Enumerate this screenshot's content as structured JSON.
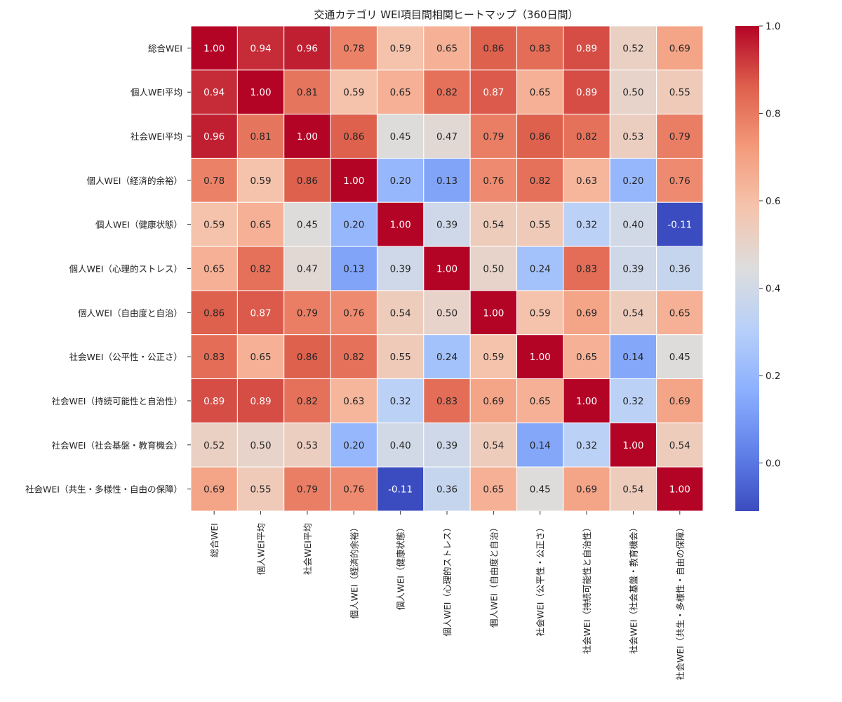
{
  "chart_data": {
    "type": "heatmap",
    "title": "交通カテゴリ WEI項目間相関ヒートマップ（360日間）",
    "categories": [
      "総合WEI",
      "個人WEI平均",
      "社会WEI平均",
      "個人WEI（経済的余裕）",
      "個人WEI（健康状態）",
      "個人WEI（心理的ストレス）",
      "個人WEI（自由度と自治）",
      "社会WEI（公平性・公正さ）",
      "社会WEI（持続可能性と自治性）",
      "社会WEI（社会基盤・教育機会）",
      "社会WEI（共生・多様性・自由の保障）"
    ],
    "values": [
      [
        1.0,
        0.94,
        0.96,
        0.78,
        0.59,
        0.65,
        0.86,
        0.83,
        0.89,
        0.52,
        0.69
      ],
      [
        0.94,
        1.0,
        0.81,
        0.59,
        0.65,
        0.82,
        0.87,
        0.65,
        0.89,
        0.5,
        0.55
      ],
      [
        0.96,
        0.81,
        1.0,
        0.86,
        0.45,
        0.47,
        0.79,
        0.86,
        0.82,
        0.53,
        0.79
      ],
      [
        0.78,
        0.59,
        0.86,
        1.0,
        0.2,
        0.13,
        0.76,
        0.82,
        0.63,
        0.2,
        0.76
      ],
      [
        0.59,
        0.65,
        0.45,
        0.2,
        1.0,
        0.39,
        0.54,
        0.55,
        0.32,
        0.4,
        -0.11
      ],
      [
        0.65,
        0.82,
        0.47,
        0.13,
        0.39,
        1.0,
        0.5,
        0.24,
        0.83,
        0.39,
        0.36
      ],
      [
        0.86,
        0.87,
        0.79,
        0.76,
        0.54,
        0.5,
        1.0,
        0.59,
        0.69,
        0.54,
        0.65
      ],
      [
        0.83,
        0.65,
        0.86,
        0.82,
        0.55,
        0.24,
        0.59,
        1.0,
        0.65,
        0.14,
        0.45
      ],
      [
        0.89,
        0.89,
        0.82,
        0.63,
        0.32,
        0.83,
        0.69,
        0.65,
        1.0,
        0.32,
        0.69
      ],
      [
        0.52,
        0.5,
        0.53,
        0.2,
        0.4,
        0.39,
        0.54,
        0.14,
        0.32,
        1.0,
        0.54
      ],
      [
        0.69,
        0.55,
        0.79,
        0.76,
        -0.11,
        0.36,
        0.65,
        0.45,
        0.69,
        0.54,
        1.0
      ]
    ],
    "colorscale": "coolwarm",
    "vmin": -0.11,
    "vmax": 1.0,
    "colorbar_ticks": [
      "0.0",
      "0.2",
      "0.4",
      "0.6",
      "0.8",
      "1.0"
    ]
  }
}
